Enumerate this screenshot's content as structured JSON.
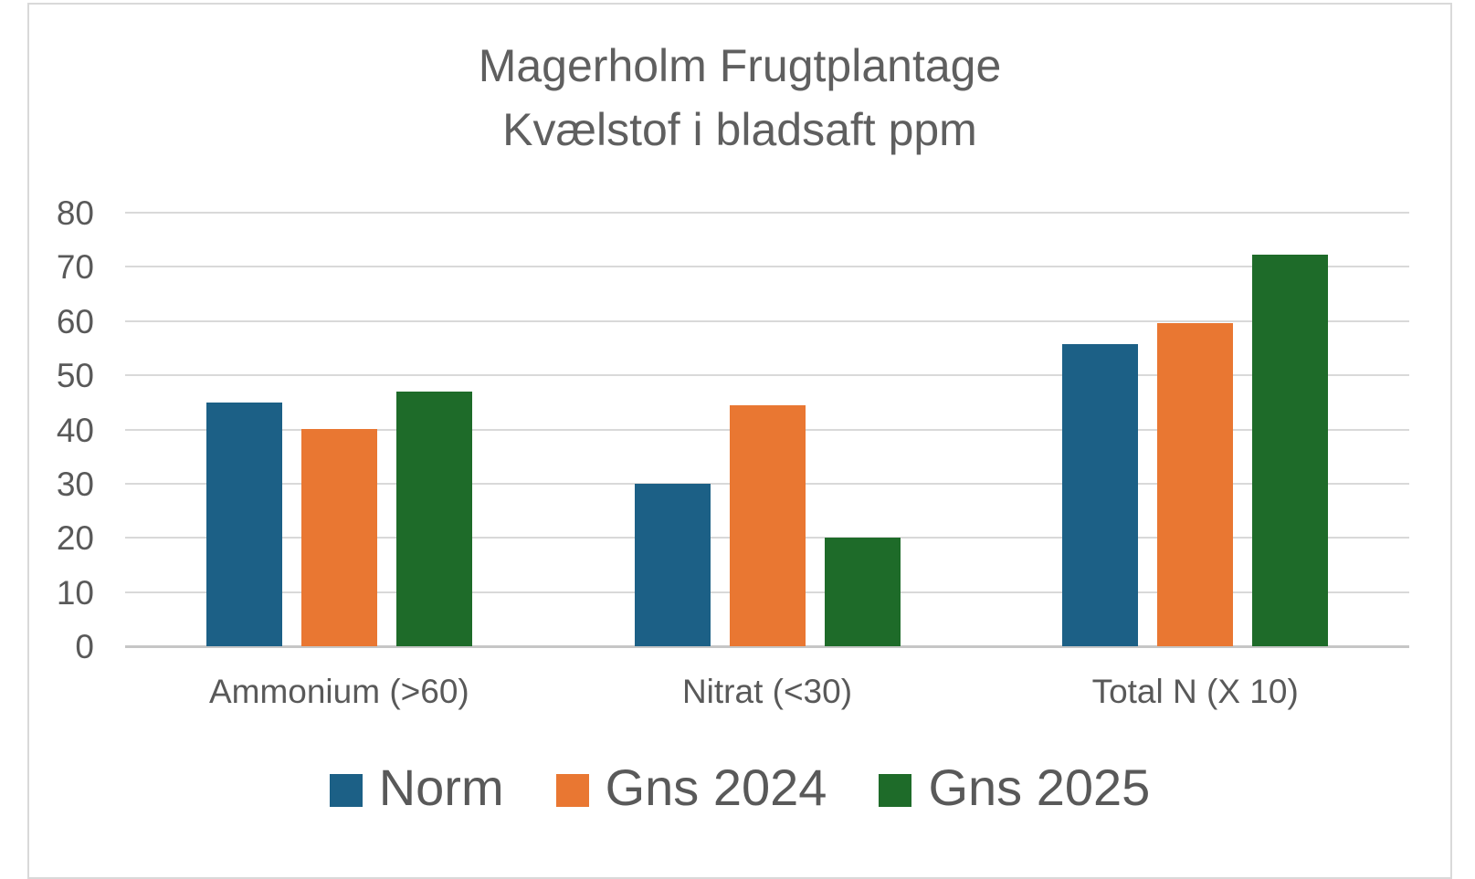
{
  "chart_data": {
    "type": "bar",
    "title_lines": [
      "Magerholm Frugtplantage",
      "Kvælstof i bladsaft ppm"
    ],
    "categories": [
      "Ammonium (>60)",
      "Nitrat (<30)",
      "Total N (X 10)"
    ],
    "series": [
      {
        "name": "Norm",
        "color": "#1C6086",
        "values": [
          45,
          30,
          55.8
        ]
      },
      {
        "name": "Gns 2024",
        "color": "#E97732",
        "values": [
          40,
          44.4,
          59.6
        ]
      },
      {
        "name": "Gns 2025",
        "color": "#1E6B29",
        "values": [
          47,
          20,
          72.2
        ]
      }
    ],
    "ylim": [
      0,
      80
    ],
    "yticks": [
      0,
      10,
      20,
      30,
      40,
      50,
      60,
      70,
      80
    ],
    "xlabel": "",
    "ylabel": "",
    "grid": true,
    "legend_position": "bottom"
  },
  "palette": {
    "background": "#FFFFFF",
    "frame_border": "#D9D9D9",
    "gridline": "#D9D9D9",
    "baseline": "#C6C6C6",
    "title_text": "#5F5F5F",
    "axis_text": "#595959",
    "legend_text": "#595959"
  }
}
